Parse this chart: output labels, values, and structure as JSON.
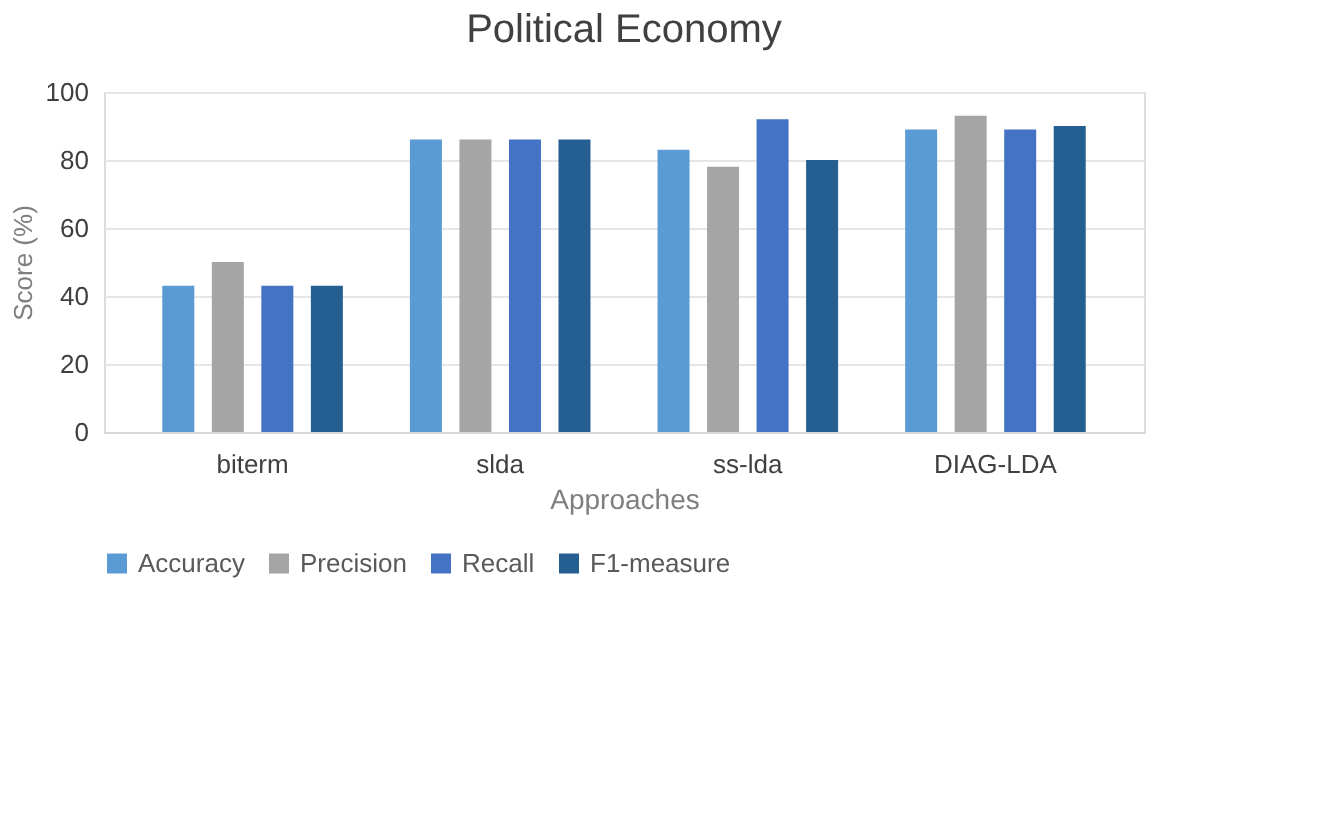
{
  "chart_data": {
    "type": "bar",
    "title": "Political Economy",
    "xlabel": "Approaches",
    "ylabel": "Score (%)",
    "categories": [
      "biterm",
      "slda",
      "ss-lda",
      "DIAG-LDA"
    ],
    "series": [
      {
        "name": "Accuracy",
        "color": "#5b9bd5",
        "values": [
          43,
          86,
          83,
          89
        ]
      },
      {
        "name": "Precision",
        "color": "#a5a5a5",
        "values": [
          50,
          86,
          78,
          93
        ]
      },
      {
        "name": "Recall",
        "color": "#4472c4",
        "values": [
          43,
          86,
          92,
          89
        ]
      },
      {
        "name": "F1-measure",
        "color": "#255e91",
        "values": [
          43,
          86,
          80,
          90
        ]
      }
    ],
    "ylim": [
      0,
      100
    ],
    "yticks": [
      0,
      20,
      40,
      60,
      80,
      100
    ],
    "grid": "y",
    "legend": "bottom"
  }
}
